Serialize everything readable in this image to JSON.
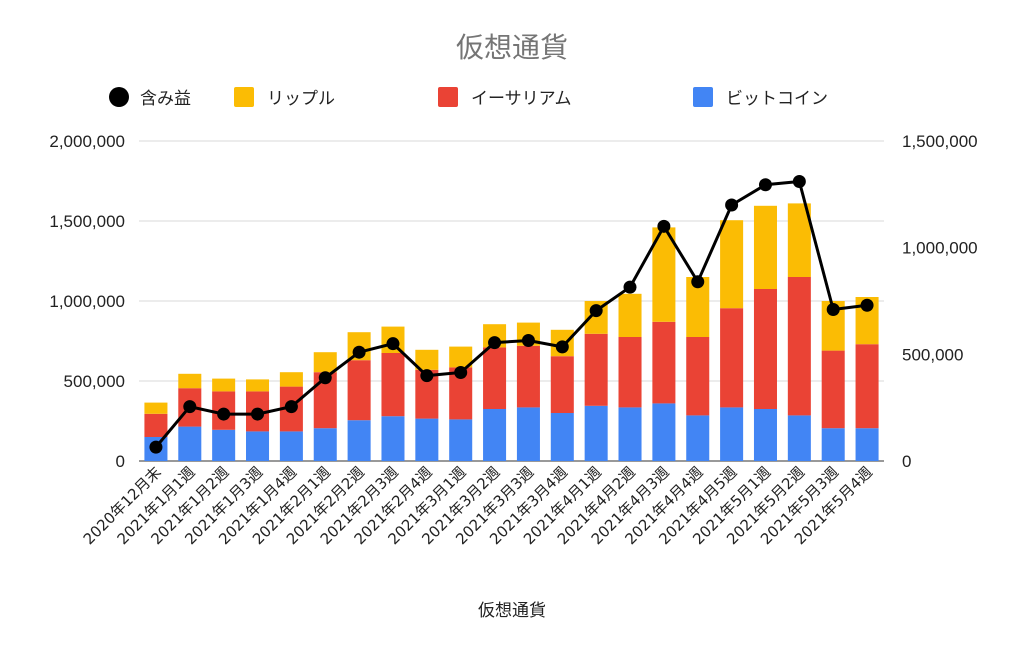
{
  "chart_data": {
    "type": "bar",
    "title": "仮想通貨",
    "xlabel": "仮想通貨",
    "ylabel": "",
    "stacked": true,
    "legend_position": "top",
    "ylim": [
      0,
      2000000
    ],
    "y2lim": [
      0,
      1500000
    ],
    "yticks": [
      "0",
      "500,000",
      "1,000,000",
      "1,500,000",
      "2,000,000"
    ],
    "y2ticks": [
      "0",
      "500,000",
      "1,000,000",
      "1,500,000"
    ],
    "categories": [
      "2020年12月末",
      "2021年1月1週",
      "2021年1月2週",
      "2021年1月3週",
      "2021年1月4週",
      "2021年2月1週",
      "2021年2月2週",
      "2021年2月3週",
      "2021年2月4週",
      "2021年3月1週",
      "2021年3月2週",
      "2021年3月3週",
      "2021年3月4週",
      "2021年4月1週",
      "2021年4月2週",
      "2021年4月3週",
      "2021年4月4週",
      "2021年4月5週",
      "2021年5月1週",
      "2021年5月2週",
      "2021年5月3週",
      "2021年5月4週"
    ],
    "series": [
      {
        "name": "ビットコイン",
        "color": "#4285f4",
        "type": "bar",
        "values": [
          150000,
          215000,
          195000,
          185000,
          185000,
          205000,
          255000,
          280000,
          265000,
          260000,
          325000,
          335000,
          300000,
          345000,
          335000,
          360000,
          285000,
          335000,
          325000,
          285000,
          205000,
          205000
        ]
      },
      {
        "name": "イーサリアム",
        "color": "#ea4335",
        "type": "bar",
        "values": [
          145000,
          240000,
          240000,
          250000,
          280000,
          350000,
          375000,
          395000,
          305000,
          325000,
          385000,
          385000,
          355000,
          450000,
          440000,
          510000,
          490000,
          620000,
          750000,
          865000,
          485000,
          525000
        ]
      },
      {
        "name": "リップル",
        "color": "#fbbc04",
        "type": "bar",
        "values": [
          70000,
          90000,
          80000,
          75000,
          90000,
          125000,
          175000,
          165000,
          125000,
          130000,
          145000,
          145000,
          165000,
          205000,
          270000,
          590000,
          375000,
          550000,
          520000,
          460000,
          310000,
          295000
        ]
      },
      {
        "name": "含み益",
        "color": "#000000",
        "type": "line",
        "axis": "right",
        "values": [
          65000,
          255000,
          220000,
          220000,
          255000,
          390000,
          510000,
          550000,
          400000,
          415000,
          555000,
          565000,
          535000,
          705000,
          815000,
          1100000,
          840000,
          1200000,
          1295000,
          1310000,
          710000,
          730000
        ]
      }
    ]
  }
}
